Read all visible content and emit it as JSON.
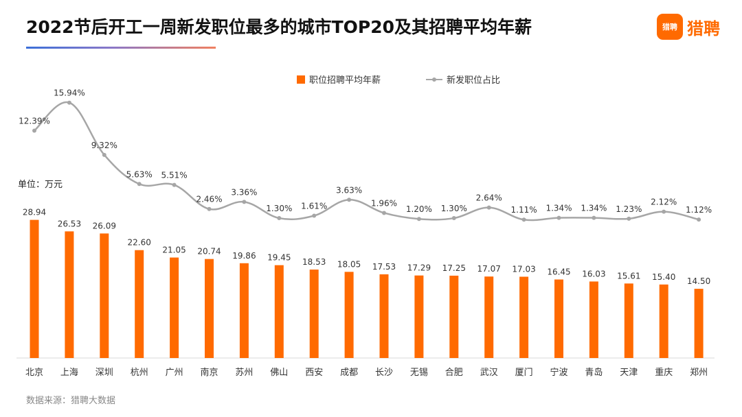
{
  "header": {
    "title": "2022节后开工一周新发职位最多的城市TOP20及其招聘平均年薪",
    "logo_badge": "猎聘",
    "logo_text": "猎聘"
  },
  "unit_label": "单位：万元",
  "source_label": "数据来源：猎聘大数据",
  "colors": {
    "bar": "#ff6a00",
    "line": "#a6a6a6",
    "accent": "#ff6a00"
  },
  "chart_data": {
    "type": "bar",
    "title": "2022节后开工一周新发职位最多的城市TOP20及其招聘平均年薪",
    "categories": [
      "北京",
      "上海",
      "深圳",
      "杭州",
      "广州",
      "南京",
      "苏州",
      "佛山",
      "西安",
      "成都",
      "长沙",
      "无锡",
      "合肥",
      "武汉",
      "厦门",
      "宁波",
      "青岛",
      "天津",
      "重庆",
      "郑州"
    ],
    "series": [
      {
        "name": "职位招聘平均年薪",
        "type": "bar",
        "values": [
          28.94,
          26.53,
          26.09,
          22.6,
          21.05,
          20.74,
          19.86,
          19.45,
          18.53,
          18.05,
          17.53,
          17.29,
          17.25,
          17.07,
          17.03,
          16.45,
          16.03,
          15.61,
          15.4,
          14.5
        ],
        "labels": [
          "28.94",
          "26.53",
          "26.09",
          "22.60",
          "21.05",
          "20.74",
          "19.86",
          "19.45",
          "18.53",
          "18.05",
          "17.53",
          "17.29",
          "17.25",
          "17.07",
          "17.03",
          "16.45",
          "16.03",
          "15.61",
          "15.40",
          "14.50"
        ]
      },
      {
        "name": "新发职位占比",
        "type": "line",
        "values": [
          12.39,
          15.94,
          9.32,
          5.63,
          5.51,
          2.46,
          3.36,
          1.3,
          1.61,
          3.63,
          1.96,
          1.2,
          1.3,
          2.64,
          1.11,
          1.34,
          1.34,
          1.23,
          2.12,
          1.12
        ],
        "labels": [
          "12.39%",
          "15.94%",
          "9.32%",
          "5.63%",
          "5.51%",
          "2.46%",
          "3.36%",
          "1.30%",
          "1.61%",
          "3.63%",
          "1.96%",
          "1.20%",
          "1.30%",
          "2.64%",
          "1.11%",
          "1.34%",
          "1.34%",
          "1.23%",
          "2.12%",
          "1.12%"
        ]
      }
    ],
    "ylim": [
      0,
      30
    ],
    "y2lim": [
      0,
      16
    ],
    "grid": false,
    "legend_position": "top-center"
  }
}
